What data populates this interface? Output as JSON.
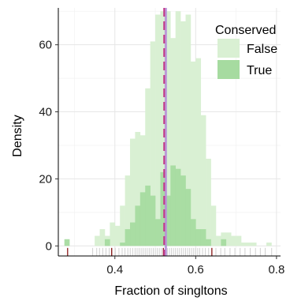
{
  "chart_data": {
    "type": "histogram",
    "xlabel": "Fraction of singltons",
    "ylabel": "Density",
    "xlim": [
      0.26,
      0.81
    ],
    "ylim": [
      -3,
      71
    ],
    "x_ticks": [
      "0.4",
      "0.6",
      "0.8"
    ],
    "y_ticks": [
      "0",
      "20",
      "40",
      "60"
    ],
    "grid": true,
    "legend": {
      "title": "Conserved",
      "position": "top-right",
      "entries": [
        "False",
        "True"
      ]
    },
    "colors": {
      "false_fill": "#d9f0d3",
      "true_fill": "#a6dba0",
      "mean_line": "#c23b8a",
      "median_line": "#b78fd8",
      "rug_false": "#d0d0d0",
      "rug_true": "#8b1a1a"
    },
    "bin_width": 0.0125,
    "bin_starts": [
      0.275,
      0.2875,
      0.3,
      0.3125,
      0.325,
      0.3375,
      0.35,
      0.3625,
      0.375,
      0.3875,
      0.4,
      0.4125,
      0.425,
      0.4375,
      0.45,
      0.4625,
      0.475,
      0.4875,
      0.5,
      0.5125,
      0.525,
      0.5375,
      0.55,
      0.5625,
      0.575,
      0.5875,
      0.6,
      0.6125,
      0.625,
      0.6375,
      0.65,
      0.6625,
      0.675,
      0.6875,
      0.7,
      0.7125,
      0.725,
      0.7375,
      0.75,
      0.7625,
      0.775
    ],
    "series": [
      {
        "name": "False",
        "values": [
          0,
          0,
          0,
          0,
          0,
          0,
          3,
          5,
          3,
          7,
          6,
          12,
          21,
          32,
          34,
          33,
          47,
          61,
          69,
          70,
          70,
          62,
          70,
          67,
          69,
          55,
          56,
          39,
          26,
          12,
          3,
          4,
          4,
          3,
          3,
          1,
          1,
          1,
          0,
          0,
          1
        ]
      },
      {
        "name": "True",
        "values": [
          2,
          0,
          0,
          0,
          0,
          0,
          0,
          0,
          2,
          0,
          0,
          1,
          5,
          7,
          12,
          16,
          18,
          15,
          8,
          22,
          15,
          24,
          23,
          21,
          17,
          8,
          5,
          5,
          2,
          0,
          0,
          2,
          0,
          0,
          0,
          0,
          0,
          0,
          0,
          0,
          0
        ]
      }
    ],
    "mean_line_x": 0.522,
    "median_line_x": 0.526,
    "rug_false_x": [
      0.345,
      0.355,
      0.362,
      0.37,
      0.378,
      0.386,
      0.393,
      0.401,
      0.41,
      0.418,
      0.425,
      0.432,
      0.438,
      0.444,
      0.45,
      0.455,
      0.46,
      0.465,
      0.47,
      0.475,
      0.48,
      0.485,
      0.49,
      0.495,
      0.5,
      0.505,
      0.51,
      0.515,
      0.52,
      0.525,
      0.53,
      0.535,
      0.54,
      0.545,
      0.55,
      0.555,
      0.56,
      0.565,
      0.57,
      0.575,
      0.58,
      0.585,
      0.59,
      0.595,
      0.6,
      0.605,
      0.61,
      0.617,
      0.624,
      0.632,
      0.64,
      0.65,
      0.662,
      0.672,
      0.685,
      0.697,
      0.71,
      0.722,
      0.735,
      0.748,
      0.76,
      0.772,
      0.788
    ],
    "rug_true_x": [
      0.283,
      0.392,
      0.52,
      0.64
    ]
  }
}
